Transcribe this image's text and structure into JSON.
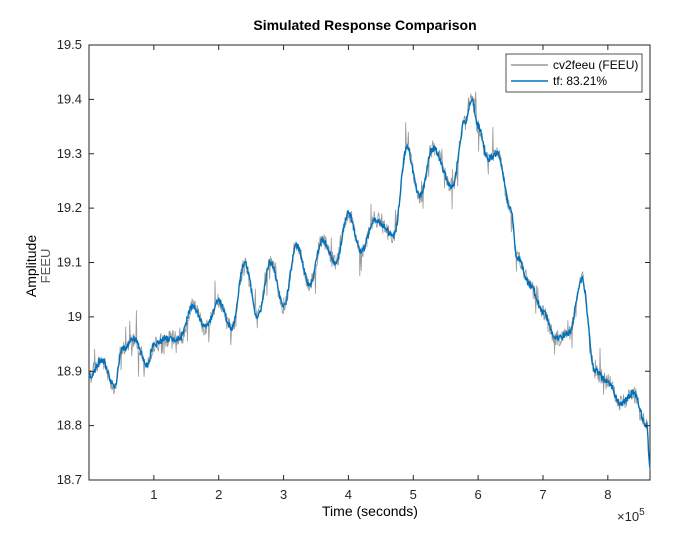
{
  "chart_data": {
    "type": "line",
    "title": "Simulated Response Comparison",
    "xlabel": "Time (seconds)",
    "ylabel": "Amplitude",
    "ylabel_sub": "FEEU",
    "x_exponent_label": "×10",
    "x_exponent_power": "5",
    "xlim": [
      0,
      8.65
    ],
    "ylim": [
      18.7,
      19.5
    ],
    "xticks": [
      1,
      2,
      3,
      4,
      5,
      6,
      7,
      8
    ],
    "xtick_labels": [
      "1",
      "2",
      "3",
      "4",
      "5",
      "6",
      "7",
      "8"
    ],
    "yticks": [
      18.7,
      18.8,
      18.9,
      19,
      19.1,
      19.2,
      19.3,
      19.4,
      19.5
    ],
    "ytick_labels": [
      "18.7",
      "18.8",
      "18.9",
      "19",
      "19.1",
      "19.2",
      "19.3",
      "19.4",
      "19.5"
    ],
    "grid": false,
    "legend_position": "top-right",
    "series": [
      {
        "name": "cv2feeu (FEEU)",
        "color": "#999999",
        "style": "noisy measured data",
        "x": [
          0,
          0.2,
          0.4,
          0.5,
          0.7,
          0.9,
          1.0,
          1.2,
          1.4,
          1.6,
          1.8,
          2.0,
          2.2,
          2.4,
          2.6,
          2.8,
          3.0,
          3.2,
          3.4,
          3.6,
          3.8,
          4.0,
          4.2,
          4.4,
          4.7,
          4.9,
          5.1,
          5.3,
          5.6,
          5.8,
          5.9,
          6.0,
          6.15,
          6.3,
          6.5,
          6.6,
          6.8,
          7.0,
          7.2,
          7.4,
          7.6,
          7.8,
          8.0,
          8.2,
          8.4,
          8.6,
          8.65
        ],
        "y": [
          18.89,
          18.92,
          18.87,
          18.94,
          18.96,
          18.91,
          18.95,
          18.96,
          18.96,
          19.02,
          18.98,
          19.03,
          18.98,
          19.1,
          19.0,
          19.1,
          19.02,
          19.13,
          19.06,
          19.14,
          19.1,
          19.19,
          19.12,
          19.18,
          19.15,
          19.31,
          19.22,
          19.31,
          19.24,
          19.36,
          19.4,
          19.35,
          19.29,
          19.3,
          19.2,
          19.11,
          19.06,
          19.01,
          18.96,
          18.97,
          19.07,
          18.9,
          18.88,
          18.84,
          18.86,
          18.8,
          18.72
        ]
      },
      {
        "name": "tf: 83.21%",
        "color": "#0072BD",
        "style": "simulated model output",
        "x": [
          0,
          0.2,
          0.4,
          0.5,
          0.7,
          0.9,
          1.0,
          1.2,
          1.4,
          1.6,
          1.8,
          2.0,
          2.2,
          2.4,
          2.6,
          2.8,
          3.0,
          3.2,
          3.4,
          3.6,
          3.8,
          4.0,
          4.2,
          4.4,
          4.7,
          4.9,
          5.1,
          5.3,
          5.6,
          5.8,
          5.9,
          6.0,
          6.15,
          6.3,
          6.5,
          6.6,
          6.8,
          7.0,
          7.2,
          7.4,
          7.6,
          7.8,
          8.0,
          8.2,
          8.4,
          8.6,
          8.65
        ],
        "y": [
          18.89,
          18.92,
          18.87,
          18.94,
          18.96,
          18.91,
          18.95,
          18.96,
          18.96,
          19.02,
          18.98,
          19.03,
          18.98,
          19.1,
          19.0,
          19.1,
          19.02,
          19.13,
          19.06,
          19.14,
          19.1,
          19.19,
          19.12,
          19.18,
          19.15,
          19.31,
          19.22,
          19.31,
          19.24,
          19.36,
          19.4,
          19.35,
          19.29,
          19.3,
          19.2,
          19.11,
          19.06,
          19.01,
          18.96,
          18.97,
          19.07,
          18.9,
          18.88,
          18.84,
          18.86,
          18.8,
          18.72
        ]
      }
    ]
  }
}
